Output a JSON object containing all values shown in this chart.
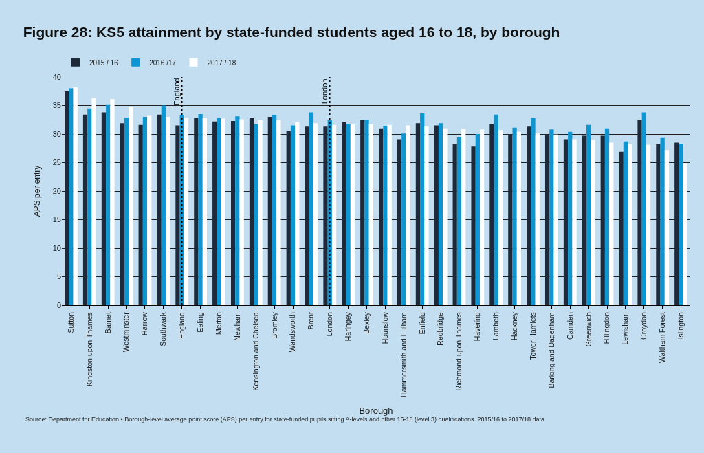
{
  "chart_data": {
    "type": "bar",
    "title": "Figure 28: KS5 attainment by state-funded students aged 16 to 18, by borough",
    "xlabel": "Borough",
    "ylabel": "APS per entry",
    "categories": [
      "Sutton",
      "Kingston upon Thames",
      "Barnet",
      "Westminster",
      "Harrow",
      "Southwark",
      "England",
      "Ealing",
      "Merton",
      "Newham",
      "Kensington and Chelsea",
      "Bromley",
      "Wandsworth",
      "Brent",
      "London",
      "Haringey",
      "Bexley",
      "Hounslow",
      "Hammersmith and Fulham",
      "Enfield",
      "Redbridge",
      "Richmond upon Thames",
      "Havering",
      "Lambeth",
      "Hackney",
      "Tower Hamlets",
      "Barking and Dagenham",
      "Camden",
      "Greenwich",
      "Hillingdon",
      "Lewisham",
      "Croydon",
      "Waltham Forest",
      "Islington"
    ],
    "series": [
      {
        "name": "2015 / 16",
        "color": "#1e293a",
        "values": [
          37.5,
          33.4,
          33.8,
          31.9,
          31.6,
          33.4,
          31.5,
          32.8,
          32.2,
          32.3,
          32.9,
          33.0,
          30.5,
          31.3,
          31.3,
          32.1,
          32.4,
          31.0,
          29.1,
          31.9,
          31.5,
          28.3,
          27.8,
          31.8,
          30.0,
          31.3,
          29.9,
          29.1,
          29.7,
          29.7,
          26.9,
          32.5,
          28.3,
          28.5
        ]
      },
      {
        "name": "2016 /17",
        "color": "#0e96d2",
        "values": [
          38.0,
          34.5,
          35.1,
          32.9,
          33.0,
          35.0,
          33.3,
          33.5,
          32.8,
          33.1,
          31.7,
          33.3,
          31.5,
          33.8,
          32.4,
          31.8,
          32.5,
          31.4,
          30.1,
          33.6,
          31.9,
          29.5,
          30.0,
          33.4,
          31.1,
          32.8,
          30.8,
          30.4,
          31.6,
          31.0,
          28.7,
          33.8,
          29.3,
          28.3
        ]
      },
      {
        "name": "2017 / 18",
        "color": "#ffffff",
        "values": [
          38.2,
          36.3,
          36.1,
          34.8,
          33.2,
          33.0,
          32.9,
          32.8,
          32.7,
          32.6,
          32.4,
          32.4,
          32.1,
          31.9,
          31.6,
          31.7,
          31.7,
          31.6,
          31.5,
          31.3,
          31.0,
          30.9,
          30.8,
          30.7,
          30.4,
          30.1,
          29.9,
          29.1,
          29.0,
          28.5,
          28.2,
          28.1,
          27.2,
          24.9
        ]
      }
    ],
    "ylim": [
      0,
      40
    ],
    "yticks": [
      0,
      5,
      10,
      15,
      20,
      25,
      30,
      35,
      40
    ],
    "grid": "y",
    "legend": "top left",
    "ref_lines": [
      {
        "axis": "x",
        "value": "England",
        "label": "England",
        "color": "#000000",
        "line_style": "dotted"
      },
      {
        "axis": "x",
        "value": "London",
        "label": "London",
        "color": "#000000",
        "line_style": "dotted"
      }
    ],
    "annotations": [
      "Source: Department for Education • Borough-level average point score (APS) per entry for state-funded pupils sitting A-levels and other 16-18 (level 3) qualifications. 2015/16 to 2017/18 data"
    ]
  }
}
